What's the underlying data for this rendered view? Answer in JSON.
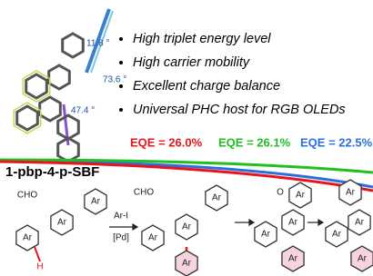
{
  "molecule": {
    "name": "1-pbp-4-p-SBF",
    "angles": [
      "11.8 °",
      "73.6 °",
      "47.4 °"
    ]
  },
  "highlights": [
    "High triplet energy level",
    "High carrier mobility",
    "Excellent charge balance",
    "Universal PHC host for RGB OLEDs"
  ],
  "eqe": [
    {
      "text": "EQE = 26.0%",
      "color": "#e8141c"
    },
    {
      "text": "EQE = 26.1%",
      "color": "#1fc01f"
    },
    {
      "text": "EQE = 22.5%",
      "color": "#2a6fe0"
    }
  ],
  "scheme": {
    "labels": [
      "CHO",
      "Ar",
      "Ar",
      "Ar",
      "H",
      "Ar-I",
      "[Pd]",
      "CHO",
      "Ar",
      "Ar",
      "Ar",
      "Ar",
      "O",
      "Ar",
      "Ar",
      "Ar",
      "Ar",
      "Ar",
      "Ar",
      "Ar",
      "Ar"
    ]
  }
}
